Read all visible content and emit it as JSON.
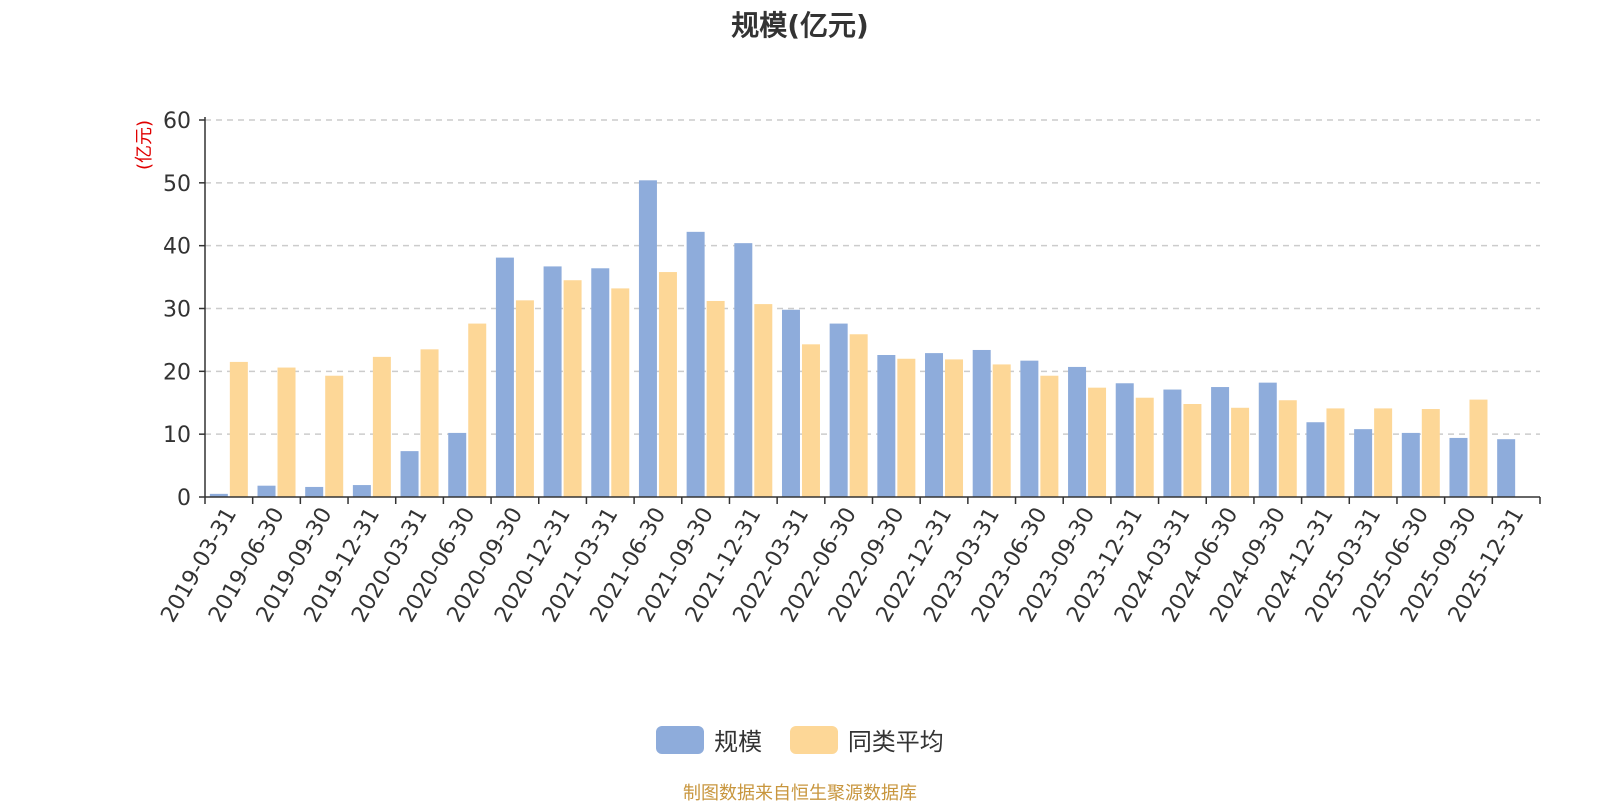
{
  "chart_data": {
    "type": "bar",
    "title": "规模(亿元)",
    "ylabel": "(亿元)",
    "xlabel": "",
    "ylim": [
      0,
      60
    ],
    "yticks": [
      0,
      10,
      20,
      30,
      40,
      50,
      60
    ],
    "grid": "horizontal dashed",
    "legend_position": "bottom",
    "categories": [
      "2019-03-31",
      "2019-06-30",
      "2019-09-30",
      "2019-12-31",
      "2020-03-31",
      "2020-06-30",
      "2020-09-30",
      "2020-12-31",
      "2021-03-31",
      "2021-06-30",
      "2021-09-30",
      "2021-12-31",
      "2022-03-31",
      "2022-06-30",
      "2022-09-30",
      "2022-12-31",
      "2023-03-31",
      "2023-06-30",
      "2023-09-30",
      "2023-12-31",
      "2024-03-31",
      "2024-06-30",
      "2024-09-30",
      "2024-12-31",
      "2025-03-31",
      "2025-06-30",
      "2025-09-30",
      "2025-12-31"
    ],
    "series": [
      {
        "name": "规模",
        "color": "#8eacdb",
        "values": [
          0.5,
          1.8,
          1.6,
          1.9,
          7.3,
          10.2,
          38.1,
          36.7,
          36.4,
          50.4,
          42.2,
          40.4,
          29.8,
          27.6,
          22.6,
          22.9,
          23.4,
          21.7,
          20.7,
          18.1,
          17.1,
          17.5,
          18.2,
          11.9,
          10.8,
          10.2,
          9.4,
          9.2
        ]
      },
      {
        "name": "同类平均",
        "color": "#fdd797",
        "values": [
          21.5,
          20.6,
          19.3,
          22.3,
          23.5,
          27.6,
          31.3,
          34.5,
          33.2,
          35.8,
          31.2,
          30.7,
          24.3,
          25.9,
          22.0,
          21.9,
          21.1,
          19.3,
          17.4,
          15.8,
          14.8,
          14.2,
          15.4,
          14.1,
          14.1,
          14.0,
          15.5,
          null
        ]
      }
    ]
  },
  "source_note": "制图数据来自恒生聚源数据库"
}
